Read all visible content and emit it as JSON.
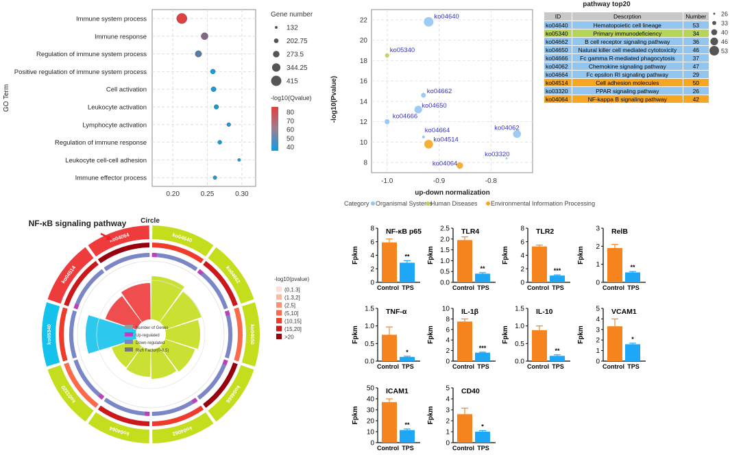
{
  "colors": {
    "org": "#92c5ef",
    "hum": "#b5d45a",
    "env": "#f5a623",
    "bar_ctrl": "#f5841f",
    "bar_tps": "#1ea7f7"
  },
  "chart_data": [
    {
      "type": "scatter",
      "id": "go_enrichment",
      "xlabel": "",
      "ylabel": "GO Term",
      "xlim": [
        0.17,
        0.32
      ],
      "xticks": [
        "0.20",
        "0.25",
        "0.30"
      ],
      "xtick_values": [
        0.2,
        0.25,
        0.3
      ],
      "categories": [
        "Immune system process",
        "Immune response",
        "Regulation of immune system process",
        "Positive regulation of immune system process",
        "Cell activation",
        "Leukocyte activation",
        "Lymphocyte activation",
        "Regulation of immune response",
        "Leukocyte cell-cell adhesion",
        "Immune effector process"
      ],
      "x": [
        0.213,
        0.246,
        0.237,
        0.258,
        0.259,
        0.263,
        0.281,
        0.268,
        0.296,
        0.261
      ],
      "size": [
        415,
        290,
        270,
        210,
        215,
        200,
        175,
        180,
        140,
        170
      ],
      "qvalue": [
        85,
        65,
        55,
        40,
        40,
        40,
        40,
        40,
        40,
        40
      ],
      "size_legend_title": "Gene number",
      "size_legend": [
        "132",
        "202.75",
        "273.5",
        "344.25",
        "415"
      ],
      "size_legend_values": [
        132,
        202.75,
        273.5,
        344.25,
        415
      ],
      "color_legend_title": "-log10(Qvalue)",
      "color_legend": [
        "80",
        "70",
        "60",
        "50",
        "40"
      ]
    },
    {
      "type": "scatter",
      "id": "kegg_scatter",
      "title": "pathway top20",
      "xlabel": "up-down normalization",
      "ylabel": "-log10(Pvalue)",
      "xlim": [
        -1.03,
        -0.72
      ],
      "ylim": [
        7,
        23
      ],
      "xticks": [
        "-1.0",
        "-0.9",
        "-0.8"
      ],
      "xtick_values": [
        -1.0,
        -0.9,
        -0.8
      ],
      "yticks": [
        "8",
        "10",
        "12",
        "14",
        "16",
        "18",
        "20",
        "22"
      ],
      "ytick_values": [
        8,
        10,
        12,
        14,
        16,
        18,
        20,
        22
      ],
      "points": [
        {
          "label": "ko04640",
          "x": -0.92,
          "y": 21.8,
          "n": 53,
          "cat": "org"
        },
        {
          "label": "ko05340",
          "x": -1.0,
          "y": 18.5,
          "n": 34,
          "cat": "hum"
        },
        {
          "label": "ko04662",
          "x": -0.93,
          "y": 14.6,
          "n": 36,
          "cat": "org"
        },
        {
          "label": "ko04650",
          "x": -0.94,
          "y": 13.2,
          "n": 46,
          "cat": "org"
        },
        {
          "label": "ko04666",
          "x": -1.0,
          "y": 12.0,
          "n": 37,
          "cat": "org"
        },
        {
          "label": "ko04664",
          "x": -0.93,
          "y": 10.5,
          "n": 29,
          "cat": "org"
        },
        {
          "label": "ko04514",
          "x": -0.92,
          "y": 9.8,
          "n": 50,
          "cat": "env"
        },
        {
          "label": "ko04062",
          "x": -0.75,
          "y": 10.8,
          "n": 47,
          "cat": "org"
        },
        {
          "label": "ko03320",
          "x": -0.77,
          "y": 8.4,
          "n": 26,
          "cat": "org"
        },
        {
          "label": "ko04064",
          "x": -0.86,
          "y": 7.7,
          "n": 42,
          "cat": "env"
        }
      ],
      "size_legend": [
        "26",
        "33",
        "40",
        "46",
        "53"
      ],
      "size_legend_values": [
        26,
        33,
        40,
        46,
        53
      ],
      "category_title": "Category",
      "categories_legend": [
        {
          "name": "Organismal Systems",
          "key": "org"
        },
        {
          "name": "Human Diseases",
          "key": "hum"
        },
        {
          "name": "Environmental Information Processing",
          "key": "env"
        }
      ]
    },
    {
      "type": "bar",
      "id": "fpkm_bars",
      "ylabel": "Fpkm",
      "categories": [
        "Control",
        "TPS"
      ],
      "panels": [
        {
          "title": "NF-κB p65",
          "values": [
            5.9,
            2.9
          ],
          "err": [
            0.5,
            0.3
          ],
          "ylim": [
            0,
            8
          ],
          "yticks": [
            "0",
            "2",
            "4",
            "6",
            "8"
          ],
          "ytick_values": [
            0,
            2,
            4,
            6,
            8
          ],
          "sig": "**"
        },
        {
          "title": "TLR4",
          "values": [
            1.95,
            0.4
          ],
          "err": [
            0.15,
            0.05
          ],
          "ylim": [
            0,
            2.5
          ],
          "yticks": [
            "0.0",
            "0.5",
            "1.0",
            "1.5",
            "2.0",
            "2.5"
          ],
          "ytick_values": [
            0,
            0.5,
            1,
            1.5,
            2,
            2.5
          ],
          "sig": "**"
        },
        {
          "title": "TLR2",
          "values": [
            5.3,
            1.0
          ],
          "err": [
            0.2,
            0.1
          ],
          "ylim": [
            0,
            8
          ],
          "yticks": [
            "0",
            "2",
            "4",
            "6",
            "8"
          ],
          "ytick_values": [
            0,
            2,
            4,
            6,
            8
          ],
          "sig": "***"
        },
        {
          "title": "RelB",
          "values": [
            1.9,
            0.55
          ],
          "err": [
            0.2,
            0.05
          ],
          "ylim": [
            0,
            3
          ],
          "yticks": [
            "0",
            "1",
            "2",
            "3"
          ],
          "ytick_values": [
            0,
            1,
            2,
            3
          ],
          "sig": "**"
        },
        {
          "title": "TNF-α",
          "values": [
            0.75,
            0.12
          ],
          "err": [
            0.22,
            0.02
          ],
          "ylim": [
            0,
            1.5
          ],
          "yticks": [
            "0.0",
            "0.5",
            "1.0",
            "1.5"
          ],
          "ytick_values": [
            0,
            0.5,
            1,
            1.5
          ],
          "sig": "*"
        },
        {
          "title": "IL-1β",
          "values": [
            7.5,
            1.6
          ],
          "err": [
            0.5,
            0.1
          ],
          "ylim": [
            0,
            10
          ],
          "yticks": [
            "0",
            "2",
            "4",
            "6",
            "8",
            "10"
          ],
          "ytick_values": [
            0,
            2,
            4,
            6,
            8,
            10
          ],
          "sig": "***"
        },
        {
          "title": "IL-10",
          "values": [
            0.88,
            0.15
          ],
          "err": [
            0.12,
            0.03
          ],
          "ylim": [
            0,
            1.5
          ],
          "yticks": [
            "0.0",
            "0.5",
            "1.0",
            "1.5"
          ],
          "ytick_values": [
            0,
            0.5,
            1,
            1.5
          ],
          "sig": "**"
        },
        {
          "title": "VCAM1",
          "values": [
            3.3,
            1.6
          ],
          "err": [
            0.7,
            0.1
          ],
          "ylim": [
            0,
            5
          ],
          "yticks": [
            "0",
            "1",
            "2",
            "3",
            "4",
            "5"
          ],
          "ytick_values": [
            0,
            1,
            2,
            3,
            4,
            5
          ],
          "sig": "*"
        },
        {
          "title": "ICAM1",
          "values": [
            37,
            11.5
          ],
          "err": [
            3,
            1
          ],
          "ylim": [
            0,
            50
          ],
          "yticks": [
            "0",
            "10",
            "20",
            "30",
            "40",
            "50"
          ],
          "ytick_values": [
            0,
            10,
            20,
            30,
            40,
            50
          ],
          "sig": "**"
        },
        {
          "title": "CD40",
          "values": [
            2.6,
            1.0
          ],
          "err": [
            0.55,
            0.1
          ],
          "ylim": [
            0,
            5
          ],
          "yticks": [
            "0",
            "1",
            "2",
            "3",
            "4",
            "5"
          ],
          "ytick_values": [
            0,
            1,
            2,
            3,
            4,
            5
          ],
          "sig": "*"
        }
      ]
    },
    {
      "type": "circos",
      "id": "kegg_circle",
      "title": "NF-κB signaling pathway",
      "subtitle": "Circle",
      "sectors": [
        {
          "id": "ko04640",
          "color": "lime",
          "rich": 0.45,
          "up": true
        },
        {
          "id": "ko04662",
          "color": "lime",
          "rich": 0.38,
          "up": true
        },
        {
          "id": "ko04650",
          "color": "lime",
          "rich": 0.32,
          "up": true
        },
        {
          "id": "ko04666",
          "color": "lime",
          "rich": 0.28,
          "up": true
        },
        {
          "id": "ko04062",
          "color": "lime",
          "rich": 0.25,
          "up": true
        },
        {
          "id": "ko04064",
          "color": "lime",
          "rich": 0.22,
          "up": true
        },
        {
          "id": "ko03320",
          "color": "lime",
          "rich": 0.2,
          "up": true
        },
        {
          "id": "ko05340",
          "color": "cyan",
          "rich": 0.55,
          "up": false
        },
        {
          "id": "ko04514",
          "color": "red",
          "rich": 0.3,
          "up": true
        },
        {
          "id": "ko04064",
          "color": "red",
          "rich": 0.35,
          "up": false
        }
      ],
      "legend_title": "-log10(pvalue)",
      "legend_items": [
        "(0,1.3]",
        "(1.3,2]",
        "(2,5]",
        "(5,10]",
        "(10,15]",
        "(15,20]",
        ">20"
      ],
      "legend_colors": [
        "#fde0dd",
        "#fcbba1",
        "#fc9272",
        "#fb6a4a",
        "#ef3b2c",
        "#cb181d",
        "#99000d"
      ],
      "inner_legend": [
        "Number of Genes",
        "Up-regulated",
        "Down-regulated",
        "Rich Factor(0-0.5)"
      ]
    }
  ],
  "kegg_table": {
    "headers": [
      "ID",
      "Descrption",
      "Number"
    ],
    "rows": [
      {
        "id": "ko04640",
        "desc": "Hematopoietic cell lineage",
        "num": "53",
        "cat": "org"
      },
      {
        "id": "ko05340",
        "desc": "Primary immunodeficiency",
        "num": "34",
        "cat": "hum"
      },
      {
        "id": "ko04662",
        "desc": "B cell receptor signaling pathway",
        "num": "36",
        "cat": "org"
      },
      {
        "id": "ko04650",
        "desc": "Natural killer cell mediated cytotoxicity",
        "num": "46",
        "cat": "org"
      },
      {
        "id": "ko04666",
        "desc": "Fc gamma R-mediated phagocytosis",
        "num": "37",
        "cat": "org"
      },
      {
        "id": "ko04062",
        "desc": "Chemokine signaling pathway",
        "num": "47",
        "cat": "org"
      },
      {
        "id": "ko04664",
        "desc": "Fc epsilon RI signaling pathway",
        "num": "29",
        "cat": "org"
      },
      {
        "id": "ko04514",
        "desc": "Cell adhesion molecules",
        "num": "50",
        "cat": "env"
      },
      {
        "id": "ko03320",
        "desc": "PPAR signaling pathway",
        "num": "26",
        "cat": "org"
      },
      {
        "id": "ko04064",
        "desc": "NF-kappa B signaling pathway",
        "num": "42",
        "cat": "env"
      }
    ]
  }
}
